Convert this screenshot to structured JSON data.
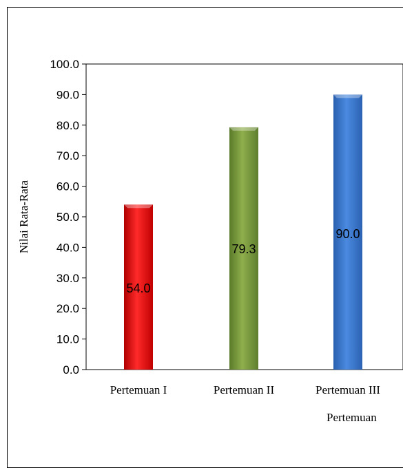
{
  "chart_data": {
    "type": "bar",
    "categories": [
      "Pertemuan I",
      "Pertemuan II",
      "Pertemuan III"
    ],
    "values": [
      54.0,
      79.3,
      90.0
    ],
    "data_labels": [
      "54.0",
      "79.3",
      "90.0"
    ],
    "title": "",
    "xlabel": "Pertemuan",
    "ylabel": "Nilai Rata-Rata",
    "ylim": [
      0,
      100
    ],
    "yticks": [
      "0.0",
      "10.0",
      "20.0",
      "30.0",
      "40.0",
      "50.0",
      "60.0",
      "70.0",
      "80.0",
      "90.0",
      "100.0"
    ],
    "grid": false,
    "legend": "none",
    "colors": [
      "#ff0000",
      "#77933c",
      "#3c78d0"
    ]
  }
}
